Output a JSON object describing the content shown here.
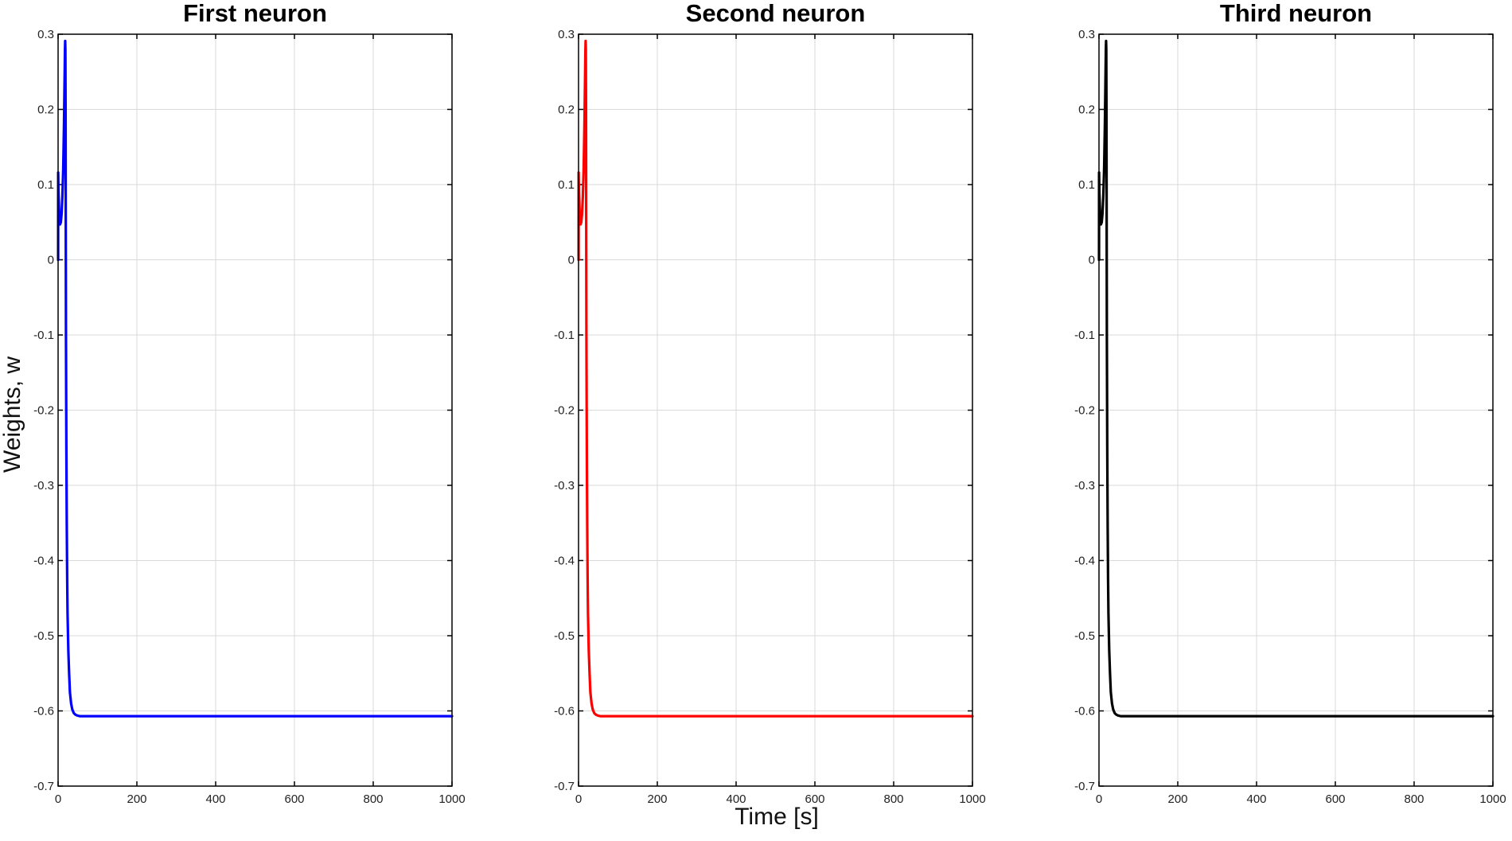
{
  "figure": {
    "ylabel": "Weights, w",
    "xlabel": "Time [s]"
  },
  "chart_data": [
    {
      "type": "line",
      "title": "First neuron",
      "xlabel": "",
      "ylabel": "Weights, w",
      "xlim": [
        0,
        1000
      ],
      "ylim": [
        -0.7,
        0.3
      ],
      "xticks": [
        "0",
        "200",
        "400",
        "600",
        "800",
        "1000"
      ],
      "yticks": [
        "-0.7",
        "-0.6",
        "-0.5",
        "-0.4",
        "-0.3",
        "-0.2",
        "-0.1",
        "0",
        "0.1",
        "0.2",
        "0.3"
      ],
      "grid": true,
      "color": "#0000ff",
      "series": [
        {
          "x": [
            0,
            0.1,
            0.2,
            1,
            3,
            5,
            7,
            9,
            11,
            13,
            15,
            16,
            17,
            17.5,
            18,
            18.5,
            19,
            19.5,
            20,
            21,
            22,
            23,
            24,
            26,
            28,
            30,
            33,
            36,
            40,
            44,
            48,
            55,
            70,
            100,
            200,
            400,
            600,
            800,
            1000
          ],
          "y": [
            0,
            0,
            0.116,
            0.09,
            0.06,
            0.047,
            0.05,
            0.062,
            0.085,
            0.12,
            0.18,
            0.22,
            0.26,
            0.28,
            0.291,
            0.28,
            0.2,
            0.05,
            -0.1,
            -0.25,
            -0.35,
            -0.42,
            -0.47,
            -0.52,
            -0.55,
            -0.575,
            -0.59,
            -0.598,
            -0.603,
            -0.605,
            -0.606,
            -0.607,
            -0.607,
            -0.607,
            -0.607,
            -0.607,
            -0.607,
            -0.607,
            -0.607
          ]
        }
      ]
    },
    {
      "type": "line",
      "title": "Second neuron",
      "xlabel": "Time [s]",
      "ylabel": "",
      "xlim": [
        0,
        1000
      ],
      "ylim": [
        -0.7,
        0.3
      ],
      "xticks": [
        "0",
        "200",
        "400",
        "600",
        "800",
        "1000"
      ],
      "yticks": [
        "-0.7",
        "-0.6",
        "-0.5",
        "-0.4",
        "-0.3",
        "-0.2",
        "-0.1",
        "0",
        "0.1",
        "0.2",
        "0.3"
      ],
      "grid": true,
      "color": "#ff0000",
      "series": [
        {
          "x": [
            0,
            0.1,
            0.2,
            1,
            3,
            5,
            7,
            9,
            11,
            13,
            15,
            16,
            17,
            17.5,
            18,
            18.5,
            19,
            19.5,
            20,
            21,
            22,
            23,
            24,
            26,
            28,
            30,
            33,
            36,
            40,
            44,
            48,
            55,
            70,
            100,
            200,
            400,
            600,
            800,
            1000
          ],
          "y": [
            0,
            0,
            0.116,
            0.09,
            0.06,
            0.047,
            0.05,
            0.062,
            0.085,
            0.12,
            0.18,
            0.22,
            0.26,
            0.28,
            0.291,
            0.28,
            0.2,
            0.05,
            -0.1,
            -0.25,
            -0.35,
            -0.42,
            -0.47,
            -0.52,
            -0.55,
            -0.575,
            -0.59,
            -0.598,
            -0.603,
            -0.605,
            -0.606,
            -0.607,
            -0.607,
            -0.607,
            -0.607,
            -0.607,
            -0.607,
            -0.607,
            -0.607
          ]
        }
      ]
    },
    {
      "type": "line",
      "title": "Third neuron",
      "xlabel": "",
      "ylabel": "",
      "xlim": [
        0,
        1000
      ],
      "ylim": [
        -0.7,
        0.3
      ],
      "xticks": [
        "0",
        "200",
        "400",
        "600",
        "800",
        "1000"
      ],
      "yticks": [
        "-0.7",
        "-0.6",
        "-0.5",
        "-0.4",
        "-0.3",
        "-0.2",
        "-0.1",
        "0",
        "0.1",
        "0.2",
        "0.3"
      ],
      "grid": true,
      "color": "#000000",
      "series": [
        {
          "x": [
            0,
            0.1,
            0.2,
            1,
            3,
            5,
            7,
            9,
            11,
            13,
            15,
            16,
            17,
            17.5,
            18,
            18.5,
            19,
            19.5,
            20,
            21,
            22,
            23,
            24,
            26,
            28,
            30,
            33,
            36,
            40,
            44,
            48,
            55,
            70,
            100,
            200,
            400,
            600,
            800,
            1000
          ],
          "y": [
            0,
            0,
            0.116,
            0.09,
            0.06,
            0.047,
            0.05,
            0.062,
            0.085,
            0.12,
            0.18,
            0.22,
            0.26,
            0.28,
            0.291,
            0.28,
            0.2,
            0.05,
            -0.1,
            -0.25,
            -0.35,
            -0.42,
            -0.47,
            -0.52,
            -0.55,
            -0.575,
            -0.59,
            -0.598,
            -0.603,
            -0.605,
            -0.606,
            -0.607,
            -0.607,
            -0.607,
            -0.607,
            -0.607,
            -0.607,
            -0.607,
            -0.607
          ]
        }
      ]
    }
  ]
}
